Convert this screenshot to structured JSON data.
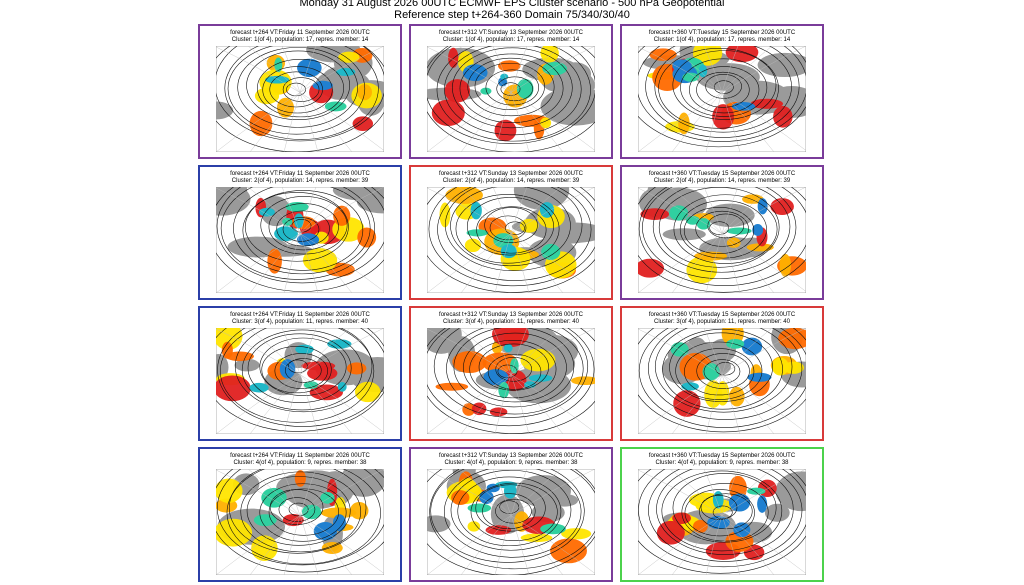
{
  "header": {
    "title": "Monday 31 August 2026 00UTC ECMWF EPS Cluster scenario - 500 hPa Geopotential",
    "subtitle": "Reference step t+264-360 Domain 75/340/30/40"
  },
  "panels": [
    {
      "forecast": "forecast t+264 VT:Friday 11 September 2026 00UTC",
      "cluster": "Cluster: 1(of 4), population: 17, repres. member: 14",
      "color": "#7a3c9a"
    },
    {
      "forecast": "forecast t+312 VT:Sunday 13 September 2026 00UTC",
      "cluster": "Cluster: 1(of 4), population: 17, repres. member: 14",
      "color": "#7a3c9a"
    },
    {
      "forecast": "forecast t+360 VT:Tuesday 15 September 2026 00UTC",
      "cluster": "Cluster: 1(of 4), population: 17, repres. member: 14",
      "color": "#7a3c9a"
    },
    {
      "forecast": "forecast t+264 VT:Friday 11 September 2026 00UTC",
      "cluster": "Cluster: 2(of 4), population: 14, repres. member: 39",
      "color": "#2b3fa8"
    },
    {
      "forecast": "forecast t+312 VT:Sunday 13 September 2026 00UTC",
      "cluster": "Cluster: 2(of 4), population: 14, repres. member: 39",
      "color": "#d83a3a"
    },
    {
      "forecast": "forecast t+360 VT:Tuesday 15 September 2026 00UTC",
      "cluster": "Cluster: 2(of 4), population: 14, repres. member: 39",
      "color": "#7a3c9a"
    },
    {
      "forecast": "forecast t+264 VT:Friday 11 September 2026 00UTC",
      "cluster": "Cluster: 3(of 4), population: 11, repres. member: 40",
      "color": "#2b3fa8"
    },
    {
      "forecast": "forecast t+312 VT:Sunday 13 September 2026 00UTC",
      "cluster": "Cluster: 3(of 4), population: 11, repres. member: 40",
      "color": "#d83a3a"
    },
    {
      "forecast": "forecast t+360 VT:Tuesday 15 September 2026 00UTC",
      "cluster": "Cluster: 3(of 4), population: 11, repres. member: 40",
      "color": "#d83a3a"
    },
    {
      "forecast": "forecast t+264 VT:Friday 11 September 2026 00UTC",
      "cluster": "Cluster: 4(of 4), population: 9, repres. member: 38",
      "color": "#2b3fa8"
    },
    {
      "forecast": "forecast t+312 VT:Sunday 13 September 2026 00UTC",
      "cluster": "Cluster: 4(of 4), population: 9, repres. member: 38",
      "color": "#7a3c9a"
    },
    {
      "forecast": "forecast t+360 VT:Tuesday 15 September 2026 00UTC",
      "cluster": "Cluster: 4(of 4), population: 9, repres. member: 38",
      "color": "#4cd24c"
    }
  ]
}
